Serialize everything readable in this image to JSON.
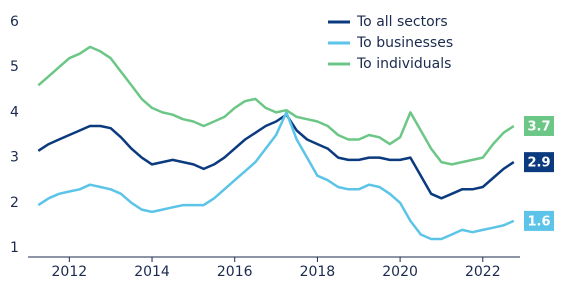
{
  "chart_data": {
    "type": "line",
    "x": [
      2011.25,
      2011.5,
      2011.75,
      2012,
      2012.25,
      2012.5,
      2012.75,
      2013,
      2013.25,
      2013.5,
      2013.75,
      2014,
      2014.25,
      2014.5,
      2014.75,
      2015,
      2015.25,
      2015.5,
      2015.75,
      2016,
      2016.25,
      2016.5,
      2016.75,
      2017,
      2017.25,
      2017.5,
      2017.75,
      2018,
      2018.25,
      2018.5,
      2018.75,
      2019,
      2019.25,
      2019.5,
      2019.75,
      2020,
      2020.25,
      2020.5,
      2020.75,
      2021,
      2021.25,
      2021.5,
      2021.75,
      2022,
      2022.25,
      2022.5,
      2022.75
    ],
    "series": [
      {
        "name": "To all sectors",
        "color": "#0b3a7e",
        "values": [
          3.15,
          3.3,
          3.4,
          3.5,
          3.6,
          3.7,
          3.7,
          3.65,
          3.45,
          3.2,
          3.0,
          2.85,
          2.9,
          2.95,
          2.9,
          2.85,
          2.75,
          2.85,
          3.0,
          3.2,
          3.4,
          3.55,
          3.7,
          3.8,
          3.95,
          3.6,
          3.4,
          3.3,
          3.2,
          3.0,
          2.95,
          2.95,
          3.0,
          3.0,
          2.95,
          2.95,
          3.0,
          2.6,
          2.2,
          2.1,
          2.2,
          2.3,
          2.3,
          2.35,
          2.55,
          2.75,
          2.9
        ]
      },
      {
        "name": "To businesses",
        "color": "#5bc4e8",
        "values": [
          1.95,
          2.1,
          2.2,
          2.25,
          2.3,
          2.4,
          2.35,
          2.3,
          2.2,
          2.0,
          1.85,
          1.8,
          1.85,
          1.9,
          1.95,
          1.95,
          1.95,
          2.1,
          2.3,
          2.5,
          2.7,
          2.9,
          3.2,
          3.5,
          4.0,
          3.4,
          3.0,
          2.6,
          2.5,
          2.35,
          2.3,
          2.3,
          2.4,
          2.35,
          2.2,
          2.0,
          1.6,
          1.3,
          1.2,
          1.2,
          1.3,
          1.4,
          1.35,
          1.4,
          1.45,
          1.5,
          1.6
        ]
      },
      {
        "name": "To individuals",
        "color": "#6cc787",
        "values": [
          4.6,
          4.8,
          5.0,
          5.2,
          5.3,
          5.45,
          5.35,
          5.2,
          4.9,
          4.6,
          4.3,
          4.1,
          4.0,
          3.95,
          3.85,
          3.8,
          3.7,
          3.8,
          3.9,
          4.1,
          4.25,
          4.3,
          4.1,
          4.0,
          4.05,
          3.9,
          3.85,
          3.8,
          3.7,
          3.5,
          3.4,
          3.4,
          3.5,
          3.45,
          3.3,
          3.45,
          4.0,
          3.6,
          3.2,
          2.9,
          2.85,
          2.9,
          2.95,
          3.0,
          3.3,
          3.55,
          3.7
        ]
      }
    ],
    "xlim": [
      2011,
      2022.9
    ],
    "xticks": [
      2012,
      2014,
      2016,
      2018,
      2020,
      2022
    ],
    "ylim": [
      0.85,
      6.1
    ],
    "yticks": [
      1,
      2,
      3,
      4,
      5,
      6
    ],
    "legend": "top-right"
  }
}
